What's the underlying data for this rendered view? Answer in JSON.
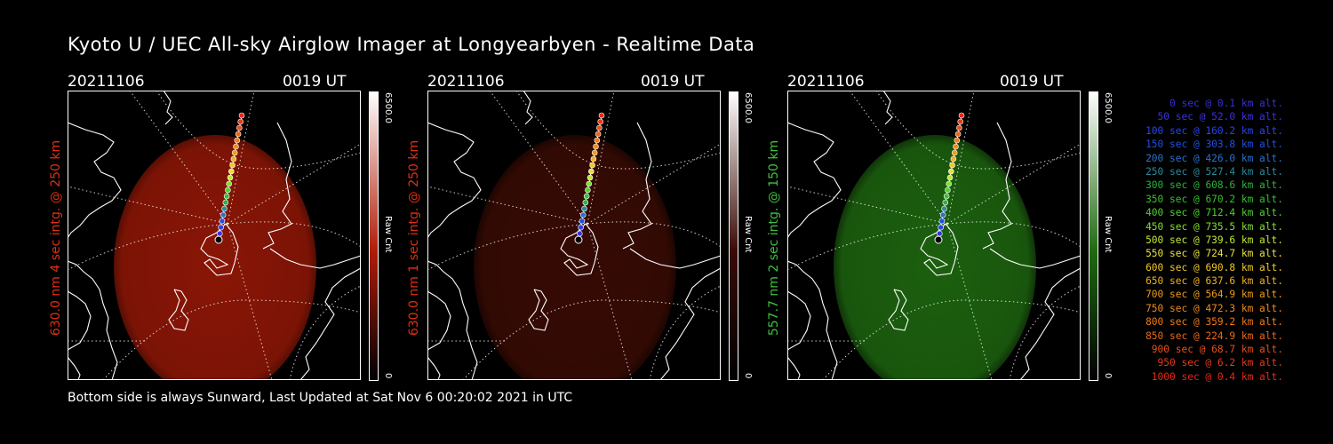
{
  "title": "Kyoto U / UEC All-sky Airglow Imager at Longyearbyen - Realtime Data",
  "footer": "Bottom side is always Sunward, Last Updated at Sat Nov  6 00:20:02 2021 in UTC",
  "panels": [
    {
      "date": "20211106",
      "time": "0019 UT",
      "ylabel": "630.0 nm 4 sec intg. @ 250 km",
      "label_color": "#e03010",
      "colorbar_max": "6500.0",
      "colorbar_min": "0",
      "colorbar_unit": "Raw Cnt",
      "glow_color": "#b01c08",
      "glow_intensity": 0.78,
      "colormap_top": "#ffffff"
    },
    {
      "date": "20211106",
      "time": "0019 UT",
      "ylabel": "630.0 nm 1 sec intg. @ 250 km",
      "label_color": "#e03010",
      "colorbar_max": "6500.0",
      "colorbar_min": "0",
      "colorbar_unit": "Raw Cnt",
      "glow_color": "#3a0b04",
      "glow_intensity": 0.95,
      "colormap_top": "#ffffff"
    },
    {
      "date": "20211106",
      "time": "0019 UT",
      "ylabel": "557.7 nm 2 sec intg. @ 150 km",
      "label_color": "#40c040",
      "colorbar_max": "6500.0",
      "colorbar_min": "0",
      "colorbar_unit": "Raw Cnt",
      "glow_color": "#1f6a10",
      "glow_intensity": 0.9,
      "colormap_top": "#ffffff"
    }
  ],
  "trajectory": [
    {
      "sec": "0 sec",
      "alt": "0.1 km alt.",
      "color": "#3a2fd0"
    },
    {
      "sec": "50 sec",
      "alt": "52.0 km alt.",
      "color": "#3a32e0"
    },
    {
      "sec": "100 sec",
      "alt": "160.2 km alt.",
      "color": "#2a44e8"
    },
    {
      "sec": "150 sec",
      "alt": "303.8 km alt.",
      "color": "#2050e0"
    },
    {
      "sec": "200 sec",
      "alt": "426.0 km alt.",
      "color": "#2a70d0"
    },
    {
      "sec": "250 sec",
      "alt": "527.4 km alt.",
      "color": "#2b8a9a"
    },
    {
      "sec": "300 sec",
      "alt": "608.6 km alt.",
      "color": "#30b040"
    },
    {
      "sec": "350 sec",
      "alt": "670.2 km alt.",
      "color": "#38c030"
    },
    {
      "sec": "400 sec",
      "alt": "712.4 km alt.",
      "color": "#50d030"
    },
    {
      "sec": "450 sec",
      "alt": "735.5 km alt.",
      "color": "#80e030"
    },
    {
      "sec": "500 sec",
      "alt": "739.6 km alt.",
      "color": "#c0e838"
    },
    {
      "sec": "550 sec",
      "alt": "724.7 km alt.",
      "color": "#e8e040"
    },
    {
      "sec": "600 sec",
      "alt": "690.8 km alt.",
      "color": "#f0c828"
    },
    {
      "sec": "650 sec",
      "alt": "637.6 km alt.",
      "color": "#f0b020"
    },
    {
      "sec": "700 sec",
      "alt": "564.9 km alt.",
      "color": "#f09a18"
    },
    {
      "sec": "750 sec",
      "alt": "472.3 km alt.",
      "color": "#f08a18"
    },
    {
      "sec": "800 sec",
      "alt": "359.2 km alt.",
      "color": "#f07a18"
    },
    {
      "sec": "850 sec",
      "alt": "224.9 km alt.",
      "color": "#e86818"
    },
    {
      "sec": "900 sec",
      "alt": "68.7 km alt.",
      "color": "#e85018"
    },
    {
      "sec": "950 sec",
      "alt": "6.2 km alt.",
      "color": "#e83818"
    },
    {
      "sec": "1000 sec",
      "alt": "0.4 km alt.",
      "color": "#e82818"
    }
  ]
}
